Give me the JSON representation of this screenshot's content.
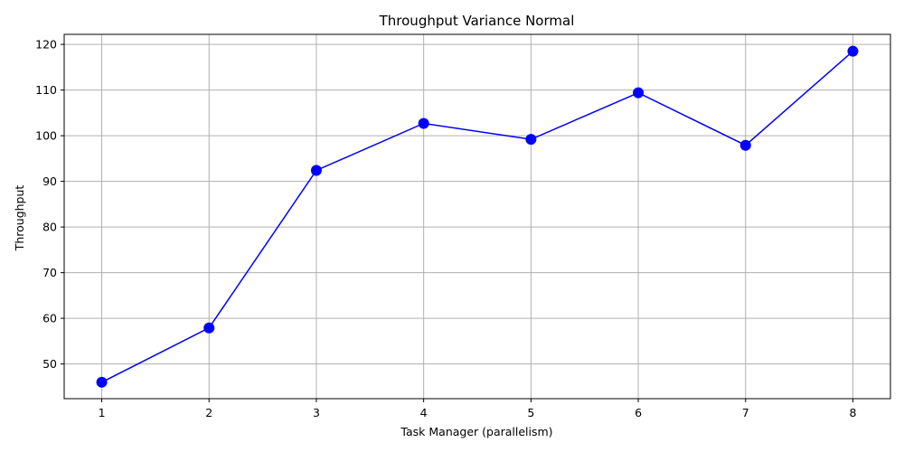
{
  "chart_data": {
    "type": "line",
    "title": "Throughput Variance Normal",
    "xlabel": "Task Manager (parallelism)",
    "ylabel": "Throughput",
    "x": [
      1,
      2,
      3,
      4,
      5,
      6,
      7,
      8
    ],
    "series": [
      {
        "values": [
          46.0,
          57.9,
          92.4,
          102.7,
          99.2,
          109.4,
          97.9,
          118.5
        ],
        "color": "#0000ff",
        "marker": "circle"
      }
    ],
    "xticks": [
      1,
      2,
      3,
      4,
      5,
      6,
      7,
      8
    ],
    "yticks": [
      50,
      60,
      70,
      80,
      90,
      100,
      110,
      120
    ],
    "xlim": [
      0.65,
      8.35
    ],
    "ylim": [
      42.4,
      122.2
    ],
    "grid": true,
    "grid_color": "#b0b0b0"
  }
}
